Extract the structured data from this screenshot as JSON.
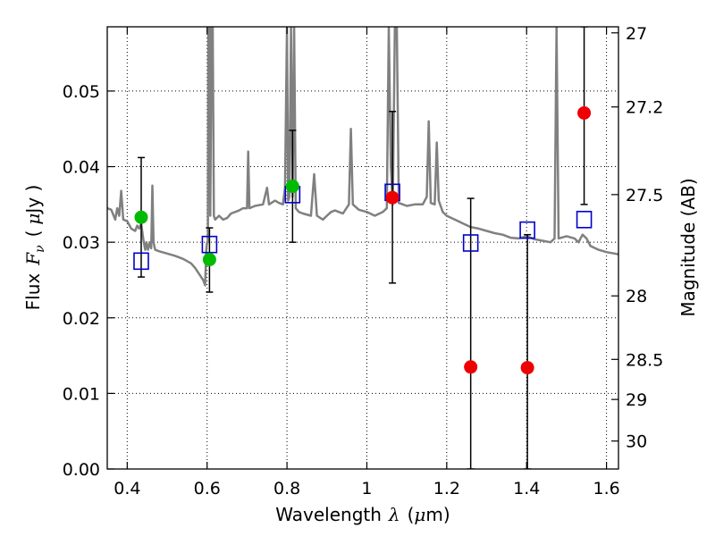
{
  "chart_data": {
    "type": "scatter",
    "xlabel": {
      "prefix": "Wavelength",
      "symbol": "λ",
      "unit_open": "(",
      "unit_mu": "μ",
      "unit_rest": "m)"
    },
    "ylabel_left": {
      "prefix": "Flux",
      "symbol": "F",
      "subscript": "ν",
      "unit_open": "(",
      "unit_mu": "μ",
      "unit_rest": "Jy )"
    },
    "ylabel_right": "Magnitude (AB)",
    "xlim": [
      0.35,
      1.63
    ],
    "ylim": [
      0.0,
      0.0585
    ],
    "grid": true,
    "x_ticks": [
      0.4,
      0.6,
      0.8,
      1.0,
      1.2,
      1.4,
      1.6
    ],
    "x_tick_labels": [
      "0.4",
      "0.6",
      "0.8",
      "1",
      "1.2",
      "1.4",
      "1.6"
    ],
    "y_ticks": [
      0.0,
      0.01,
      0.02,
      0.03,
      0.04,
      0.05
    ],
    "y_tick_labels": [
      "0.00",
      "0.01",
      "0.02",
      "0.03",
      "0.04",
      "0.05"
    ],
    "right_ticks": [
      {
        "flux": 0.0577,
        "label": "27"
      },
      {
        "flux": 0.0479,
        "label": "27.2"
      },
      {
        "flux": 0.0363,
        "label": "27.5"
      },
      {
        "flux": 0.0229,
        "label": "28"
      },
      {
        "flux": 0.0145,
        "label": "28.5"
      },
      {
        "flux": 0.0092,
        "label": "29"
      },
      {
        "flux": 0.0037,
        "label": "30"
      }
    ],
    "colors": {
      "spectrum": "#808080",
      "green": "#00bb00",
      "red": "#ee0000",
      "square": "#0000cc",
      "errorbar": "#000000",
      "grid": "#000000"
    },
    "model_squares": [
      {
        "x": 0.435,
        "y": 0.0275
      },
      {
        "x": 0.606,
        "y": 0.0297
      },
      {
        "x": 0.814,
        "y": 0.0363
      },
      {
        "x": 1.064,
        "y": 0.0366
      },
      {
        "x": 1.26,
        "y": 0.0299
      },
      {
        "x": 1.402,
        "y": 0.0316
      },
      {
        "x": 1.544,
        "y": 0.033
      }
    ],
    "green_points": [
      {
        "x": 0.435,
        "y": 0.0333,
        "ylow": 0.0254,
        "yhigh": 0.0412
      },
      {
        "x": 0.606,
        "y": 0.0277,
        "ylow": 0.0234,
        "yhigh": 0.0319
      },
      {
        "x": 0.814,
        "y": 0.0374,
        "ylow": 0.03,
        "yhigh": 0.0448
      }
    ],
    "red_points": [
      {
        "x": 1.064,
        "y": 0.0359,
        "ylow": 0.0246,
        "yhigh": 0.0473
      },
      {
        "x": 1.26,
        "y": 0.0135,
        "ylow": 0.0,
        "yhigh": 0.0358
      },
      {
        "x": 1.402,
        "y": 0.0134,
        "ylow": 0.0,
        "yhigh": 0.031
      },
      {
        "x": 1.544,
        "y": 0.0471,
        "ylow": 0.035,
        "yhigh": 0.0585
      }
    ],
    "spectrum": [
      [
        0.35,
        0.0345
      ],
      [
        0.36,
        0.0343
      ],
      [
        0.37,
        0.033
      ],
      [
        0.375,
        0.0345
      ],
      [
        0.38,
        0.0335
      ],
      [
        0.385,
        0.0368
      ],
      [
        0.39,
        0.033
      ],
      [
        0.4,
        0.0328
      ],
      [
        0.41,
        0.0318
      ],
      [
        0.42,
        0.0315
      ],
      [
        0.425,
        0.0322
      ],
      [
        0.43,
        0.0318
      ],
      [
        0.435,
        0.0325
      ],
      [
        0.44,
        0.0305
      ],
      [
        0.445,
        0.029
      ],
      [
        0.448,
        0.03
      ],
      [
        0.452,
        0.029
      ],
      [
        0.456,
        0.03
      ],
      [
        0.46,
        0.0292
      ],
      [
        0.463,
        0.0375
      ],
      [
        0.466,
        0.03
      ],
      [
        0.47,
        0.029
      ],
      [
        0.48,
        0.0288
      ],
      [
        0.5,
        0.0285
      ],
      [
        0.52,
        0.0282
      ],
      [
        0.54,
        0.0278
      ],
      [
        0.56,
        0.0272
      ],
      [
        0.57,
        0.0266
      ],
      [
        0.58,
        0.0258
      ],
      [
        0.59,
        0.025
      ],
      [
        0.595,
        0.0243
      ],
      [
        0.598,
        0.029
      ],
      [
        0.6,
        0.03
      ],
      [
        0.602,
        0.03
      ],
      [
        0.603,
        0.0585
      ],
      [
        0.606,
        0.0585
      ],
      [
        0.608,
        0.0335
      ],
      [
        0.611,
        0.0585
      ],
      [
        0.614,
        0.0585
      ],
      [
        0.617,
        0.0335
      ],
      [
        0.62,
        0.033
      ],
      [
        0.63,
        0.0335
      ],
      [
        0.64,
        0.033
      ],
      [
        0.65,
        0.0332
      ],
      [
        0.66,
        0.0338
      ],
      [
        0.67,
        0.034
      ],
      [
        0.68,
        0.0342
      ],
      [
        0.69,
        0.0345
      ],
      [
        0.7,
        0.0345
      ],
      [
        0.703,
        0.042
      ],
      [
        0.706,
        0.0345
      ],
      [
        0.72,
        0.0348
      ],
      [
        0.74,
        0.035
      ],
      [
        0.75,
        0.0372
      ],
      [
        0.755,
        0.035
      ],
      [
        0.77,
        0.0355
      ],
      [
        0.78,
        0.0352
      ],
      [
        0.79,
        0.035
      ],
      [
        0.795,
        0.0372
      ],
      [
        0.8,
        0.0585
      ],
      [
        0.803,
        0.0355
      ],
      [
        0.806,
        0.036
      ],
      [
        0.81,
        0.0585
      ],
      [
        0.814,
        0.036
      ],
      [
        0.818,
        0.0585
      ],
      [
        0.822,
        0.0345
      ],
      [
        0.83,
        0.034
      ],
      [
        0.84,
        0.0338
      ],
      [
        0.86,
        0.0335
      ],
      [
        0.868,
        0.039
      ],
      [
        0.875,
        0.0335
      ],
      [
        0.89,
        0.033
      ],
      [
        0.9,
        0.0335
      ],
      [
        0.91,
        0.034
      ],
      [
        0.92,
        0.0342
      ],
      [
        0.94,
        0.0338
      ],
      [
        0.955,
        0.035
      ],
      [
        0.96,
        0.045
      ],
      [
        0.965,
        0.035
      ],
      [
        0.98,
        0.0343
      ],
      [
        1.0,
        0.034
      ],
      [
        1.02,
        0.0335
      ],
      [
        1.04,
        0.034
      ],
      [
        1.05,
        0.0345
      ],
      [
        1.055,
        0.0585
      ],
      [
        1.06,
        0.04
      ],
      [
        1.065,
        0.035
      ],
      [
        1.07,
        0.0585
      ],
      [
        1.075,
        0.0585
      ],
      [
        1.08,
        0.0352
      ],
      [
        1.09,
        0.035
      ],
      [
        1.1,
        0.0348
      ],
      [
        1.12,
        0.035
      ],
      [
        1.14,
        0.035
      ],
      [
        1.15,
        0.036
      ],
      [
        1.155,
        0.046
      ],
      [
        1.16,
        0.0352
      ],
      [
        1.17,
        0.035
      ],
      [
        1.175,
        0.0432
      ],
      [
        1.18,
        0.0355
      ],
      [
        1.19,
        0.034
      ],
      [
        1.2,
        0.0335
      ],
      [
        1.22,
        0.033
      ],
      [
        1.24,
        0.0325
      ],
      [
        1.26,
        0.032
      ],
      [
        1.28,
        0.0318
      ],
      [
        1.3,
        0.0315
      ],
      [
        1.32,
        0.0312
      ],
      [
        1.34,
        0.031
      ],
      [
        1.36,
        0.0306
      ],
      [
        1.38,
        0.0305
      ],
      [
        1.4,
        0.0308
      ],
      [
        1.42,
        0.0304
      ],
      [
        1.44,
        0.0302
      ],
      [
        1.46,
        0.03
      ],
      [
        1.47,
        0.0305
      ],
      [
        1.475,
        0.0585
      ],
      [
        1.48,
        0.0305
      ],
      [
        1.5,
        0.0308
      ],
      [
        1.52,
        0.0305
      ],
      [
        1.53,
        0.03
      ],
      [
        1.54,
        0.031
      ],
      [
        1.55,
        0.0305
      ],
      [
        1.56,
        0.0295
      ],
      [
        1.58,
        0.029
      ],
      [
        1.6,
        0.0287
      ],
      [
        1.62,
        0.0285
      ],
      [
        1.63,
        0.0284
      ]
    ]
  }
}
